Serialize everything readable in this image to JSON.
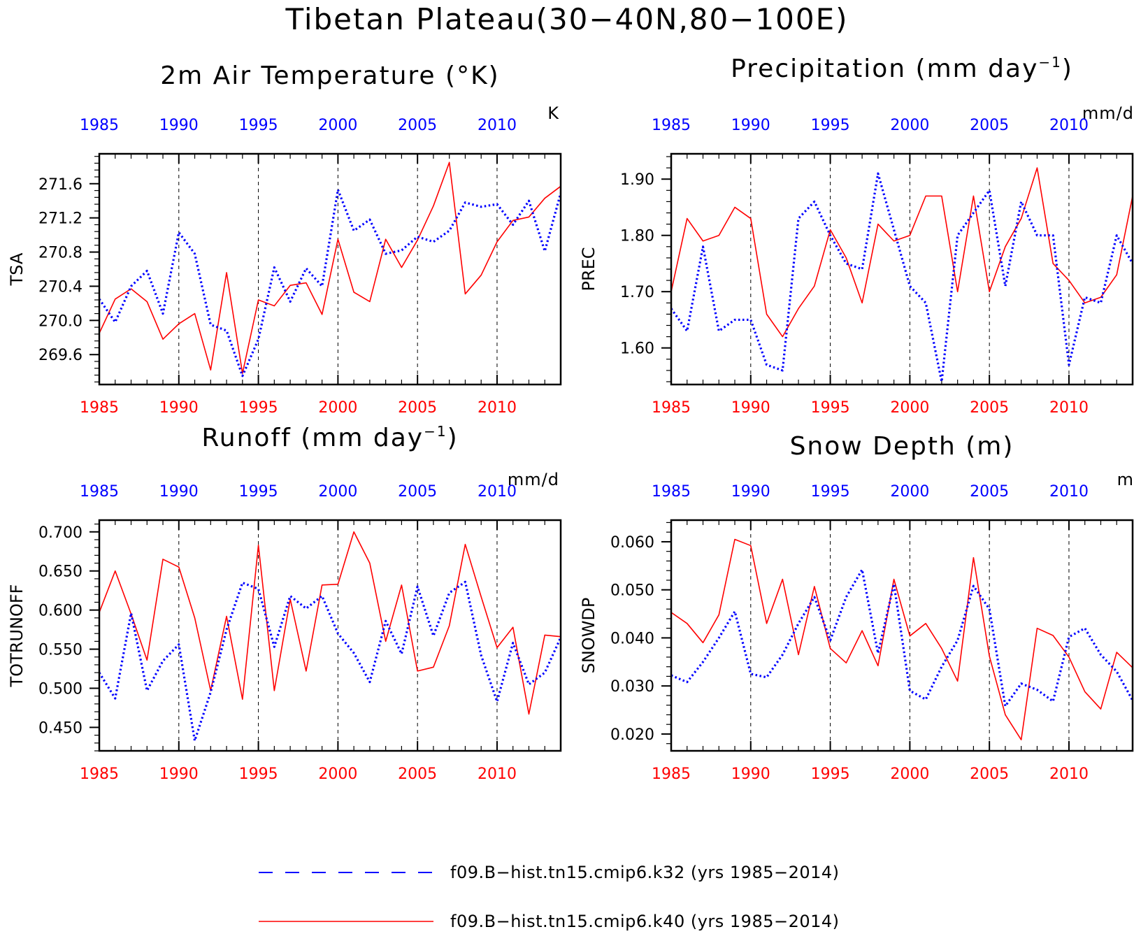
{
  "title": "Tibetan Plateau(30−40N,80−100E)",
  "colors": {
    "k32": "#0000ff",
    "k40": "#ff0000",
    "axis": "#000000",
    "grid": "#000000"
  },
  "legend": [
    {
      "label": "f09.B−hist.tn15.cmip6.k32 (yrs 1985−2014)",
      "color": "#0000ff",
      "style": "dashed"
    },
    {
      "label": "f09.B−hist.tn15.cmip6.k40 (yrs 1985−2014)",
      "color": "#ff0000",
      "style": "solid"
    }
  ],
  "chart_data": [
    {
      "type": "line",
      "title_main": "2m Air Temperature (°K)",
      "title_sup": "",
      "title_tail": "",
      "unit": "K",
      "ylabel": "TSA",
      "xlim": [
        1985,
        2014
      ],
      "ylim": [
        269.25,
        271.95
      ],
      "yticks": [
        269.6,
        270.0,
        270.4,
        270.8,
        271.2,
        271.6
      ],
      "ytick_labels": [
        "269.6",
        "270.0",
        "270.4",
        "270.8",
        "271.2",
        "271.6"
      ],
      "yminor_step": 0.08,
      "xticks": [
        1985,
        1990,
        1995,
        2000,
        2005,
        2010
      ],
      "xtick_labels": [
        "1985",
        "1990",
        "1995",
        "2000",
        "2005",
        "2010"
      ],
      "x": [
        1985,
        1986,
        1987,
        1988,
        1989,
        1990,
        1991,
        1992,
        1993,
        1994,
        1995,
        1996,
        1997,
        1998,
        1999,
        2000,
        2001,
        2002,
        2003,
        2004,
        2005,
        2006,
        2007,
        2008,
        2009,
        2010,
        2011,
        2012,
        2013,
        2014
      ],
      "series": [
        {
          "key": "k32",
          "values": [
            270.25,
            269.98,
            270.4,
            270.58,
            270.08,
            271.03,
            270.78,
            269.95,
            269.88,
            269.35,
            269.78,
            270.62,
            270.22,
            270.61,
            270.4,
            271.53,
            271.05,
            271.18,
            270.78,
            270.82,
            270.98,
            270.92,
            271.05,
            271.38,
            271.33,
            271.36,
            271.12,
            271.4,
            270.81,
            271.49
          ]
        },
        {
          "key": "k40",
          "values": [
            269.85,
            270.25,
            270.37,
            270.22,
            269.78,
            269.96,
            270.08,
            269.42,
            270.56,
            269.38,
            270.24,
            270.17,
            270.41,
            270.44,
            270.07,
            270.95,
            270.33,
            270.22,
            270.95,
            270.62,
            270.94,
            271.34,
            271.85,
            270.31,
            270.53,
            270.92,
            271.17,
            271.21,
            271.43,
            271.57
          ]
        }
      ]
    },
    {
      "type": "line",
      "title_main": "Precipitation (mm day",
      "title_sup": "−1",
      "title_tail": ")",
      "unit": "mm/d",
      "ylabel": "PREC",
      "xlim": [
        1985,
        2014
      ],
      "ylim": [
        1.535,
        1.945
      ],
      "yticks": [
        1.6,
        1.7,
        1.8,
        1.9
      ],
      "ytick_labels": [
        "1.60",
        "1.70",
        "1.80",
        "1.90"
      ],
      "yminor_step": 0.02,
      "xticks": [
        1985,
        1990,
        1995,
        2000,
        2005,
        2010
      ],
      "xtick_labels": [
        "1985",
        "1990",
        "1995",
        "2000",
        "2005",
        "2010"
      ],
      "x": [
        1985,
        1986,
        1987,
        1988,
        1989,
        1990,
        1991,
        1992,
        1993,
        1994,
        1995,
        1996,
        1997,
        1998,
        1999,
        2000,
        2001,
        2002,
        2003,
        2004,
        2005,
        2006,
        2007,
        2008,
        2009,
        2010,
        2011,
        2012,
        2013,
        2014
      ],
      "series": [
        {
          "key": "k32",
          "values": [
            1.67,
            1.63,
            1.78,
            1.63,
            1.65,
            1.65,
            1.57,
            1.56,
            1.83,
            1.86,
            1.8,
            1.75,
            1.74,
            1.91,
            1.81,
            1.71,
            1.68,
            1.54,
            1.8,
            1.84,
            1.88,
            1.71,
            1.86,
            1.8,
            1.8,
            1.57,
            1.69,
            1.68,
            1.8,
            1.75
          ]
        },
        {
          "key": "k40",
          "values": [
            1.7,
            1.83,
            1.79,
            1.8,
            1.85,
            1.83,
            1.66,
            1.62,
            1.67,
            1.71,
            1.81,
            1.76,
            1.68,
            1.82,
            1.79,
            1.8,
            1.87,
            1.87,
            1.7,
            1.87,
            1.7,
            1.78,
            1.83,
            1.92,
            1.75,
            1.72,
            1.68,
            1.69,
            1.73,
            1.87
          ]
        }
      ]
    },
    {
      "type": "line",
      "title_main": "Runoff (mm day",
      "title_sup": "−1",
      "title_tail": ")",
      "unit": "mm/d",
      "ylabel": "TOTRUNOFF",
      "xlim": [
        1985,
        2014
      ],
      "ylim": [
        0.42,
        0.715
      ],
      "yticks": [
        0.45,
        0.5,
        0.55,
        0.6,
        0.65,
        0.7
      ],
      "ytick_labels": [
        "0.450",
        "0.500",
        "0.550",
        "0.600",
        "0.650",
        "0.700"
      ],
      "yminor_step": 0.01,
      "xticks": [
        1985,
        1990,
        1995,
        2000,
        2005,
        2010
      ],
      "xtick_labels": [
        "1985",
        "1990",
        "1995",
        "2000",
        "2005",
        "2010"
      ],
      "x": [
        1985,
        1986,
        1987,
        1988,
        1989,
        1990,
        1991,
        1992,
        1993,
        1994,
        1995,
        1996,
        1997,
        1998,
        1999,
        2000,
        2001,
        2002,
        2003,
        2004,
        2005,
        2006,
        2007,
        2008,
        2009,
        2010,
        2011,
        2012,
        2013,
        2014
      ],
      "series": [
        {
          "key": "k32",
          "values": [
            0.52,
            0.487,
            0.596,
            0.497,
            0.535,
            0.556,
            0.433,
            0.495,
            0.575,
            0.635,
            0.627,
            0.553,
            0.618,
            0.602,
            0.618,
            0.57,
            0.545,
            0.508,
            0.586,
            0.544,
            0.63,
            0.567,
            0.622,
            0.636,
            0.542,
            0.483,
            0.558,
            0.505,
            0.52,
            0.565
          ]
        },
        {
          "key": "k40",
          "values": [
            0.597,
            0.65,
            0.595,
            0.536,
            0.665,
            0.655,
            0.59,
            0.497,
            0.592,
            0.486,
            0.683,
            0.497,
            0.614,
            0.522,
            0.632,
            0.633,
            0.7,
            0.66,
            0.56,
            0.632,
            0.522,
            0.527,
            0.58,
            0.684,
            0.617,
            0.552,
            0.578,
            0.467,
            0.568,
            0.566
          ]
        }
      ]
    },
    {
      "type": "line",
      "title_main": "Snow Depth (m)",
      "title_sup": "",
      "title_tail": "",
      "unit": "m",
      "ylabel": "SNOWDP",
      "xlim": [
        1985,
        2014
      ],
      "ylim": [
        0.0165,
        0.0645
      ],
      "yticks": [
        0.02,
        0.03,
        0.04,
        0.05,
        0.06
      ],
      "ytick_labels": [
        "0.020",
        "0.030",
        "0.040",
        "0.050",
        "0.060"
      ],
      "yminor_step": 0.002,
      "xticks": [
        1985,
        1990,
        1995,
        2000,
        2005,
        2010
      ],
      "xtick_labels": [
        "1985",
        "1990",
        "1995",
        "2000",
        "2005",
        "2010"
      ],
      "x": [
        1985,
        1986,
        1987,
        1988,
        1989,
        1990,
        1991,
        1992,
        1993,
        1994,
        1995,
        1996,
        1997,
        1998,
        1999,
        2000,
        2001,
        2002,
        2003,
        2004,
        2005,
        2006,
        2007,
        2008,
        2009,
        2010,
        2011,
        2012,
        2013,
        2014
      ],
      "series": [
        {
          "key": "k32",
          "values": [
            0.0322,
            0.0308,
            0.035,
            0.04,
            0.0455,
            0.0325,
            0.0318,
            0.0365,
            0.043,
            0.0485,
            0.0395,
            0.0485,
            0.0542,
            0.0368,
            0.0512,
            0.029,
            0.0272,
            0.034,
            0.0395,
            0.0508,
            0.046,
            0.0258,
            0.0305,
            0.0292,
            0.0268,
            0.0402,
            0.042,
            0.0365,
            0.033,
            0.027
          ]
        },
        {
          "key": "k40",
          "values": [
            0.0453,
            0.043,
            0.039,
            0.0448,
            0.0605,
            0.0592,
            0.043,
            0.0522,
            0.0365,
            0.0507,
            0.0378,
            0.0348,
            0.0415,
            0.0342,
            0.0522,
            0.0404,
            0.043,
            0.0378,
            0.031,
            0.0567,
            0.0362,
            0.024,
            0.0188,
            0.042,
            0.0405,
            0.036,
            0.0288,
            0.0252,
            0.037,
            0.0338
          ]
        }
      ]
    }
  ]
}
